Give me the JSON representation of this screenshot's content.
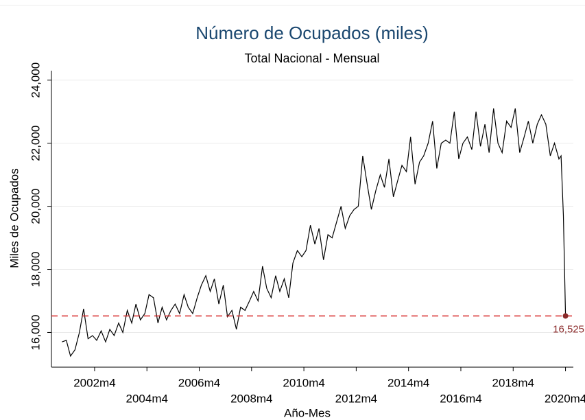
{
  "chart_data": {
    "type": "line",
    "title": "Número de Ocupados (miles)",
    "subtitle": "Total Nacional - Mensual",
    "xlabel": "Año-Mes",
    "ylabel": "Miles de Ocupados",
    "color": "#000000",
    "x": [
      2001.0,
      2001.17,
      2001.33,
      2001.5,
      2001.67,
      2001.83,
      2002.0,
      2002.17,
      2002.33,
      2002.5,
      2002.67,
      2002.83,
      2003.0,
      2003.17,
      2003.33,
      2003.5,
      2003.67,
      2003.83,
      2004.0,
      2004.17,
      2004.33,
      2004.5,
      2004.67,
      2004.83,
      2005.0,
      2005.17,
      2005.33,
      2005.5,
      2005.67,
      2005.83,
      2006.0,
      2006.17,
      2006.33,
      2006.5,
      2006.67,
      2006.83,
      2007.0,
      2007.17,
      2007.33,
      2007.5,
      2007.67,
      2007.83,
      2008.0,
      2008.17,
      2008.33,
      2008.5,
      2008.67,
      2008.83,
      2009.0,
      2009.17,
      2009.33,
      2009.5,
      2009.67,
      2009.83,
      2010.0,
      2010.17,
      2010.33,
      2010.5,
      2010.67,
      2010.83,
      2011.0,
      2011.17,
      2011.33,
      2011.5,
      2011.67,
      2011.83,
      2012.0,
      2012.17,
      2012.33,
      2012.5,
      2012.67,
      2012.83,
      2013.0,
      2013.17,
      2013.33,
      2013.5,
      2013.67,
      2013.83,
      2014.0,
      2014.17,
      2014.33,
      2014.5,
      2014.67,
      2014.83,
      2015.0,
      2015.17,
      2015.33,
      2015.5,
      2015.67,
      2015.83,
      2016.0,
      2016.17,
      2016.33,
      2016.5,
      2016.67,
      2016.83,
      2017.0,
      2017.17,
      2017.33,
      2017.5,
      2017.67,
      2017.83,
      2018.0,
      2018.17,
      2018.33,
      2018.5,
      2018.67,
      2018.83,
      2019.0,
      2019.17,
      2019.33,
      2019.5,
      2019.67,
      2019.83,
      2020.0,
      2020.08,
      2020.17,
      2020.25
    ],
    "values": [
      15700,
      15750,
      15250,
      15450,
      16000,
      16750,
      15800,
      15900,
      15750,
      16050,
      15700,
      16100,
      15900,
      16300,
      16000,
      16700,
      16300,
      16900,
      16400,
      16600,
      17200,
      17100,
      16300,
      16800,
      16400,
      16700,
      16900,
      16600,
      17200,
      16800,
      16600,
      17100,
      17500,
      17800,
      17300,
      17700,
      16900,
      17500,
      16500,
      16700,
      16100,
      16800,
      16700,
      17000,
      17300,
      17000,
      18100,
      17400,
      17100,
      17800,
      17300,
      17700,
      17100,
      18200,
      18600,
      18400,
      18600,
      19400,
      18800,
      19300,
      18300,
      19100,
      19000,
      19500,
      20000,
      19300,
      19700,
      19900,
      20000,
      21600,
      20700,
      19900,
      20500,
      21000,
      20600,
      21500,
      20300,
      20800,
      21300,
      21100,
      22200,
      20700,
      21400,
      21600,
      22000,
      22700,
      21200,
      22000,
      22100,
      22000,
      23000,
      21500,
      22000,
      22200,
      21800,
      23000,
      21900,
      22600,
      21700,
      23100,
      22000,
      21700,
      22700,
      22500,
      23100,
      21700,
      22200,
      22700,
      22000,
      22600,
      22900,
      22600,
      21600,
      22000,
      21500,
      21600,
      19700,
      16525
    ],
    "xlim": [
      2000.6,
      2020.55
    ],
    "ylim": [
      14900,
      24300
    ],
    "xticks": [
      {
        "value": 2002.25,
        "label": "2002m4"
      },
      {
        "value": 2004.25,
        "label": "2004m4"
      },
      {
        "value": 2006.25,
        "label": "2006m4"
      },
      {
        "value": 2008.25,
        "label": "2008m4"
      },
      {
        "value": 2010.25,
        "label": "2010m4"
      },
      {
        "value": 2012.25,
        "label": "2012m4"
      },
      {
        "value": 2014.25,
        "label": "2014m4"
      },
      {
        "value": 2016.25,
        "label": "2016m4"
      },
      {
        "value": 2018.25,
        "label": "2018m4"
      },
      {
        "value": 2020.25,
        "label": "2020m4"
      }
    ],
    "yticks": [
      {
        "value": 16000,
        "label": "16,000"
      },
      {
        "value": 18000,
        "label": "18,000"
      },
      {
        "value": 20000,
        "label": "20,000"
      },
      {
        "value": 22000,
        "label": "22,000"
      },
      {
        "value": 24000,
        "label": "24,000"
      }
    ],
    "grid": true,
    "hline": {
      "value": 16525,
      "label": "16,525",
      "color": "#d62728"
    }
  }
}
